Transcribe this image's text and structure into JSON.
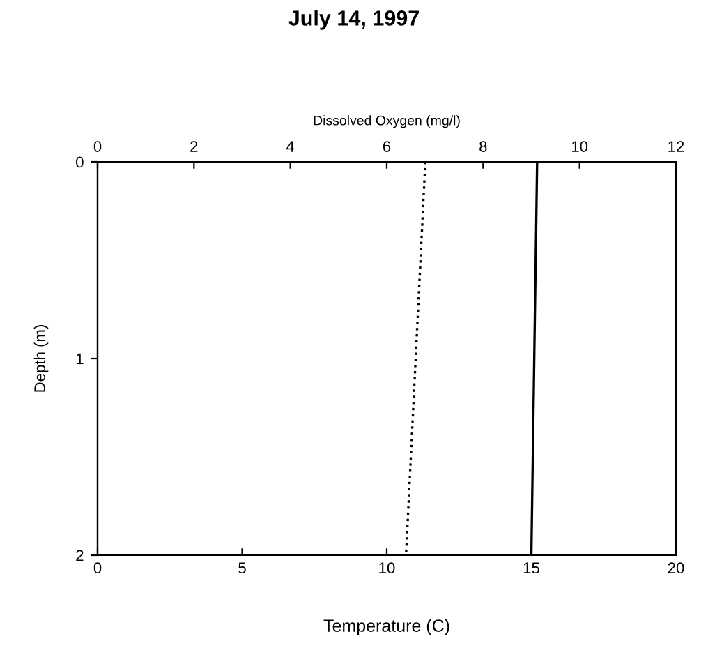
{
  "chart_data": {
    "type": "line",
    "title": "July 14, 1997",
    "xlabel": "Temperature (C)",
    "x2label": "Dissolved Oxygen (mg/l)",
    "ylabel": "Depth (m)",
    "xlim": [
      0,
      20
    ],
    "xticks": [
      0,
      5,
      10,
      15,
      20
    ],
    "x2lim": [
      0,
      12
    ],
    "x2ticks": [
      0,
      2,
      4,
      6,
      8,
      10,
      12
    ],
    "ylim": [
      2,
      0
    ],
    "yticks": [
      0,
      1,
      2
    ],
    "grid": false,
    "marker": "none",
    "series": [
      {
        "color": "#000000",
        "line_style": "solid",
        "x": [
          15.2,
          15.0
        ],
        "values": [
          0,
          2
        ]
      },
      {
        "color": "#000000",
        "line_style": "dotted",
        "axis": "x2",
        "x": [
          6.8,
          6.4
        ],
        "values": [
          0,
          2
        ]
      }
    ]
  }
}
